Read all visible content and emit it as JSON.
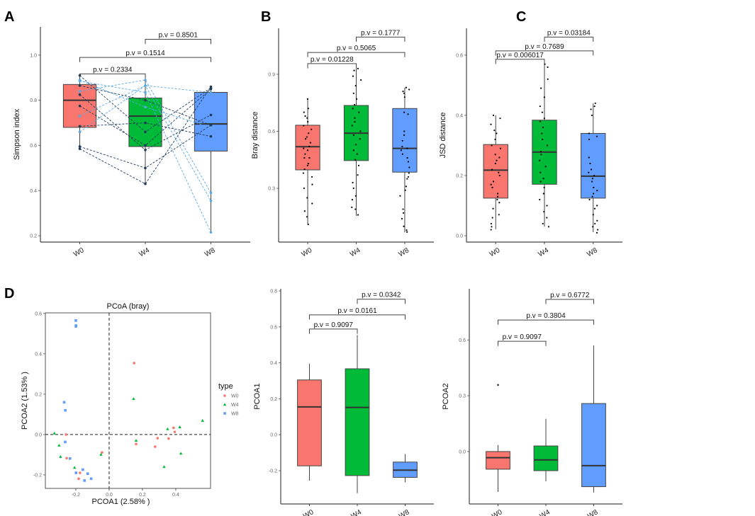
{
  "colors": {
    "W0": "#F8766D",
    "W4": "#00BA38",
    "W8": "#619CFF",
    "pair_dark": "#1f3b5a",
    "pair_light": "#5aa9e6"
  },
  "chart_data": [
    {
      "panel": "A",
      "type": "box",
      "ylabel": "Simpson index",
      "categories": [
        "W0",
        "W4",
        "W8"
      ],
      "ylim": [
        0.172,
        1.125
      ],
      "yticks": [
        0.2,
        0.4,
        0.6,
        0.8,
        1.0
      ],
      "ytick_labels": [
        "0.2",
        "0.4",
        "0.6",
        "0.8",
        "1.0"
      ],
      "boxes": [
        {
          "q1": 0.68,
          "median": 0.8,
          "q3": 0.87,
          "low": 0.58,
          "high": 0.91
        },
        {
          "q1": 0.595,
          "median": 0.73,
          "q3": 0.81,
          "low": 0.43,
          "high": 0.89
        },
        {
          "q1": 0.575,
          "median": 0.695,
          "q3": 0.835,
          "low": 0.215,
          "high": 0.86
        }
      ],
      "brackets": [
        {
          "from": 0,
          "to": 1,
          "y": 0.917,
          "label": "p.v = 0.2334"
        },
        {
          "from": 0,
          "to": 2,
          "y": 0.99,
          "label": "p.v = 0.1514"
        },
        {
          "from": 1,
          "to": 2,
          "y": 1.07,
          "label": "p.v = 0.8501"
        }
      ],
      "paired": [
        {
          "values": [
            0.91,
            0.66,
            0.855
          ],
          "shade": "dark"
        },
        {
          "values": [
            0.89,
            0.77,
            0.68
          ],
          "shade": "light"
        },
        {
          "values": [
            0.885,
            0.835,
            0.215
          ],
          "shade": "light"
        },
        {
          "values": [
            0.865,
            0.8,
            0.69
          ],
          "shade": "dark"
        },
        {
          "values": [
            0.84,
            0.89,
            0.39
          ],
          "shade": "light"
        },
        {
          "values": [
            0.825,
            0.58,
            0.735
          ],
          "shade": "dark"
        },
        {
          "values": [
            0.775,
            0.6,
            0.85
          ],
          "shade": "dark"
        },
        {
          "values": [
            0.73,
            0.865,
            0.355
          ],
          "shade": "light"
        },
        {
          "values": [
            0.685,
            0.7,
            0.64
          ],
          "shade": "dark"
        },
        {
          "values": [
            0.66,
            0.865,
            0.835
          ],
          "shade": "light"
        },
        {
          "values": [
            0.595,
            0.5,
            0.69
          ],
          "shade": "dark"
        },
        {
          "values": [
            0.585,
            0.43,
            0.86
          ],
          "shade": "dark"
        }
      ]
    },
    {
      "panel": "B",
      "type": "box",
      "ylabel": "Bray distance",
      "categories": [
        "W0",
        "W4",
        "W8"
      ],
      "ylim": [
        0.017,
        1.142
      ],
      "yticks": [
        0.3,
        0.6,
        0.9
      ],
      "ytick_labels": [
        "0.3",
        "0.6",
        "0.9"
      ],
      "boxes": [
        {
          "q1": 0.397,
          "median": 0.519,
          "q3": 0.632,
          "low": 0.111,
          "high": 0.772
        },
        {
          "q1": 0.446,
          "median": 0.59,
          "q3": 0.736,
          "low": 0.155,
          "high": 0.93
        },
        {
          "q1": 0.385,
          "median": 0.51,
          "q3": 0.72,
          "low": 0.068,
          "high": 0.83
        }
      ],
      "brackets": [
        {
          "from": 0,
          "to": 1,
          "y": 0.956,
          "label": "p.v = 0.01228"
        },
        {
          "from": 0,
          "to": 2,
          "y": 1.015,
          "label": "p.v = 0.5065"
        },
        {
          "from": 1,
          "to": 2,
          "y": 1.096,
          "label": "p.v = 0.1777"
        }
      ],
      "points": [
        [
          0.77,
          0.72,
          0.7,
          0.68,
          0.67,
          0.65,
          0.63,
          0.61,
          0.59,
          0.57,
          0.56,
          0.54,
          0.52,
          0.51,
          0.5,
          0.48,
          0.46,
          0.46,
          0.43,
          0.42,
          0.4,
          0.38,
          0.36,
          0.32,
          0.3,
          0.25,
          0.22,
          0.18,
          0.15,
          0.11
        ],
        [
          0.93,
          0.92,
          0.89,
          0.87,
          0.84,
          0.8,
          0.77,
          0.74,
          0.72,
          0.7,
          0.67,
          0.65,
          0.63,
          0.6,
          0.58,
          0.56,
          0.53,
          0.5,
          0.48,
          0.45,
          0.42,
          0.37,
          0.33,
          0.3,
          0.26,
          0.24,
          0.2,
          0.19,
          0.16
        ],
        [
          0.83,
          0.82,
          0.81,
          0.8,
          0.78,
          0.7,
          0.69,
          0.6,
          0.58,
          0.55,
          0.52,
          0.51,
          0.5,
          0.48,
          0.46,
          0.44,
          0.41,
          0.38,
          0.36,
          0.35,
          0.31,
          0.29,
          0.26,
          0.19,
          0.17,
          0.14,
          0.1,
          0.08,
          0.07
        ]
      ]
    },
    {
      "panel": "C",
      "type": "box",
      "ylabel": "JSD distance",
      "categories": [
        "W0",
        "W4",
        "W8"
      ],
      "ylim": [
        -0.021,
        0.689
      ],
      "yticks": [
        0.0,
        0.2,
        0.4,
        0.6
      ],
      "ytick_labels": [
        "0.0",
        "0.2",
        "0.4",
        "0.6"
      ],
      "boxes": [
        {
          "q1": 0.125,
          "median": 0.218,
          "q3": 0.303,
          "low": 0.022,
          "high": 0.4
        },
        {
          "q1": 0.171,
          "median": 0.278,
          "q3": 0.384,
          "low": 0.03,
          "high": 0.585
        },
        {
          "q1": 0.125,
          "median": 0.198,
          "q3": 0.34,
          "low": 0.012,
          "high": 0.44
        }
      ],
      "brackets": [
        {
          "from": 0,
          "to": 1,
          "y": 0.586,
          "label": "p.v = 0.006017"
        },
        {
          "from": 0,
          "to": 2,
          "y": 0.614,
          "label": "p.v = 0.7689"
        },
        {
          "from": 1,
          "to": 2,
          "y": 0.66,
          "label": "p.v = 0.03184"
        }
      ],
      "points": [
        [
          0.4,
          0.39,
          0.37,
          0.35,
          0.34,
          0.32,
          0.3,
          0.29,
          0.27,
          0.26,
          0.25,
          0.24,
          0.22,
          0.21,
          0.2,
          0.18,
          0.17,
          0.16,
          0.14,
          0.13,
          0.12,
          0.11,
          0.09,
          0.07,
          0.06,
          0.04,
          0.03,
          0.02
        ],
        [
          0.57,
          0.56,
          0.52,
          0.49,
          0.46,
          0.43,
          0.41,
          0.39,
          0.38,
          0.36,
          0.34,
          0.32,
          0.3,
          0.28,
          0.27,
          0.25,
          0.23,
          0.21,
          0.19,
          0.18,
          0.16,
          0.14,
          0.12,
          0.1,
          0.08,
          0.06,
          0.04,
          0.03
        ],
        [
          0.44,
          0.43,
          0.42,
          0.4,
          0.34,
          0.33,
          0.32,
          0.26,
          0.24,
          0.22,
          0.21,
          0.2,
          0.19,
          0.18,
          0.16,
          0.15,
          0.14,
          0.13,
          0.12,
          0.1,
          0.09,
          0.07,
          0.05,
          0.04,
          0.03,
          0.02,
          0.01
        ]
      ]
    },
    {
      "panel": "D",
      "type": "scatter",
      "title": "PCoA (bray)",
      "xlabel": "PCOA1 (2.58% )",
      "ylabel": "PCOA2 (1.53% )",
      "xlim": [
        -0.383,
        0.609
      ],
      "ylim": [
        -0.267,
        0.603
      ],
      "xticks": [
        -0.2,
        0.0,
        0.2,
        0.4
      ],
      "xtick_labels": [
        "-0.2",
        "0.0",
        "0.2",
        "0.4"
      ],
      "yticks": [
        -0.2,
        0.0,
        0.2,
        0.4,
        0.6
      ],
      "ytick_labels": [
        "-0.2",
        "0.0",
        "0.2",
        "0.4",
        "0.6"
      ],
      "legend": {
        "title": "type",
        "placement": "right"
      },
      "series": [
        {
          "name": "W0",
          "shape": "circle",
          "points": [
            [
              0.15,
              0.354
            ],
            [
              -0.259,
              0.0
            ],
            [
              -0.255,
              -0.117
            ],
            [
              -0.175,
              -0.19
            ],
            [
              -0.183,
              -0.219
            ],
            [
              -0.043,
              -0.089
            ],
            [
              0.162,
              -0.047
            ],
            [
              0.291,
              -0.018
            ],
            [
              0.276,
              -0.06
            ],
            [
              0.357,
              -0.02
            ],
            [
              0.387,
              0.033
            ],
            [
              0.394,
              0.013
            ]
          ]
        },
        {
          "name": "W4",
          "shape": "triangle",
          "points": [
            [
              -0.329,
              0.006
            ],
            [
              -0.301,
              -0.054
            ],
            [
              -0.292,
              -0.11
            ],
            [
              -0.208,
              -0.164
            ],
            [
              -0.049,
              -0.099
            ],
            [
              0.147,
              0.177
            ],
            [
              0.162,
              -0.03
            ],
            [
              0.351,
              0.027
            ],
            [
              0.424,
              0.037
            ],
            [
              0.561,
              0.069
            ],
            [
              0.431,
              -0.094
            ],
            [
              0.33,
              -0.16
            ]
          ]
        },
        {
          "name": "W8",
          "shape": "square",
          "points": [
            [
              -0.2,
              0.565
            ],
            [
              -0.199,
              0.54
            ],
            [
              -0.2,
              0.536
            ],
            [
              -0.27,
              0.16
            ],
            [
              -0.263,
              0.12
            ],
            [
              -0.264,
              -0.037
            ],
            [
              -0.235,
              -0.119
            ],
            [
              -0.199,
              -0.19
            ],
            [
              -0.158,
              -0.174
            ],
            [
              -0.129,
              -0.194
            ],
            [
              -0.148,
              -0.228
            ],
            [
              -0.108,
              -0.219
            ]
          ]
        }
      ]
    },
    {
      "panel": "D-PCOA1",
      "type": "box",
      "ylabel": "PCOA1",
      "categories": [
        "W0",
        "W4",
        "W8"
      ],
      "ylim": [
        -0.385,
        0.812
      ],
      "yticks": [
        -0.2,
        0.0,
        0.2,
        0.4,
        0.6,
        0.8
      ],
      "ytick_labels": [
        "-0.2",
        "0.0",
        "0.2",
        "0.4",
        "0.6",
        "0.8"
      ],
      "boxes": [
        {
          "q1": -0.173,
          "median": 0.155,
          "q3": 0.305,
          "low": -0.255,
          "high": 0.395
        },
        {
          "q1": -0.227,
          "median": 0.152,
          "q3": 0.367,
          "low": -0.325,
          "high": 0.555
        },
        {
          "q1": -0.237,
          "median": -0.197,
          "q3": -0.152,
          "low": -0.265,
          "high": -0.107
        }
      ],
      "brackets": [
        {
          "from": 0,
          "to": 1,
          "y": 0.588,
          "label": "p.v = 0.9097"
        },
        {
          "from": 0,
          "to": 2,
          "y": 0.667,
          "label": "p.v = 0.0161"
        },
        {
          "from": 1,
          "to": 2,
          "y": 0.754,
          "label": "p.v = 0.0342"
        }
      ]
    },
    {
      "panel": "D-PCOA2",
      "type": "box",
      "ylabel": "PCOA2",
      "categories": [
        "W0",
        "W4",
        "W8"
      ],
      "ylim": [
        -0.282,
        0.875
      ],
      "yticks": [
        0.0,
        0.3,
        0.6
      ],
      "ytick_labels": [
        "0.0",
        "0.3",
        "0.6"
      ],
      "boxes": [
        {
          "q1": -0.095,
          "median": -0.033,
          "q3": 0.0,
          "low": -0.217,
          "high": 0.035,
          "outliers": [
            0.358
          ]
        },
        {
          "q1": -0.103,
          "median": -0.045,
          "q3": 0.03,
          "low": -0.16,
          "high": 0.176
        },
        {
          "q1": -0.189,
          "median": -0.076,
          "q3": 0.258,
          "low": -0.22,
          "high": 0.57
        }
      ],
      "brackets": [
        {
          "from": 0,
          "to": 1,
          "y": 0.593,
          "label": "p.v = 0.9097"
        },
        {
          "from": 0,
          "to": 2,
          "y": 0.707,
          "label": "p.v = 0.3804"
        },
        {
          "from": 1,
          "to": 2,
          "y": 0.818,
          "label": "p.v = 0.6772"
        }
      ]
    }
  ],
  "panel_letters": [
    "A",
    "B",
    "C",
    "D"
  ]
}
